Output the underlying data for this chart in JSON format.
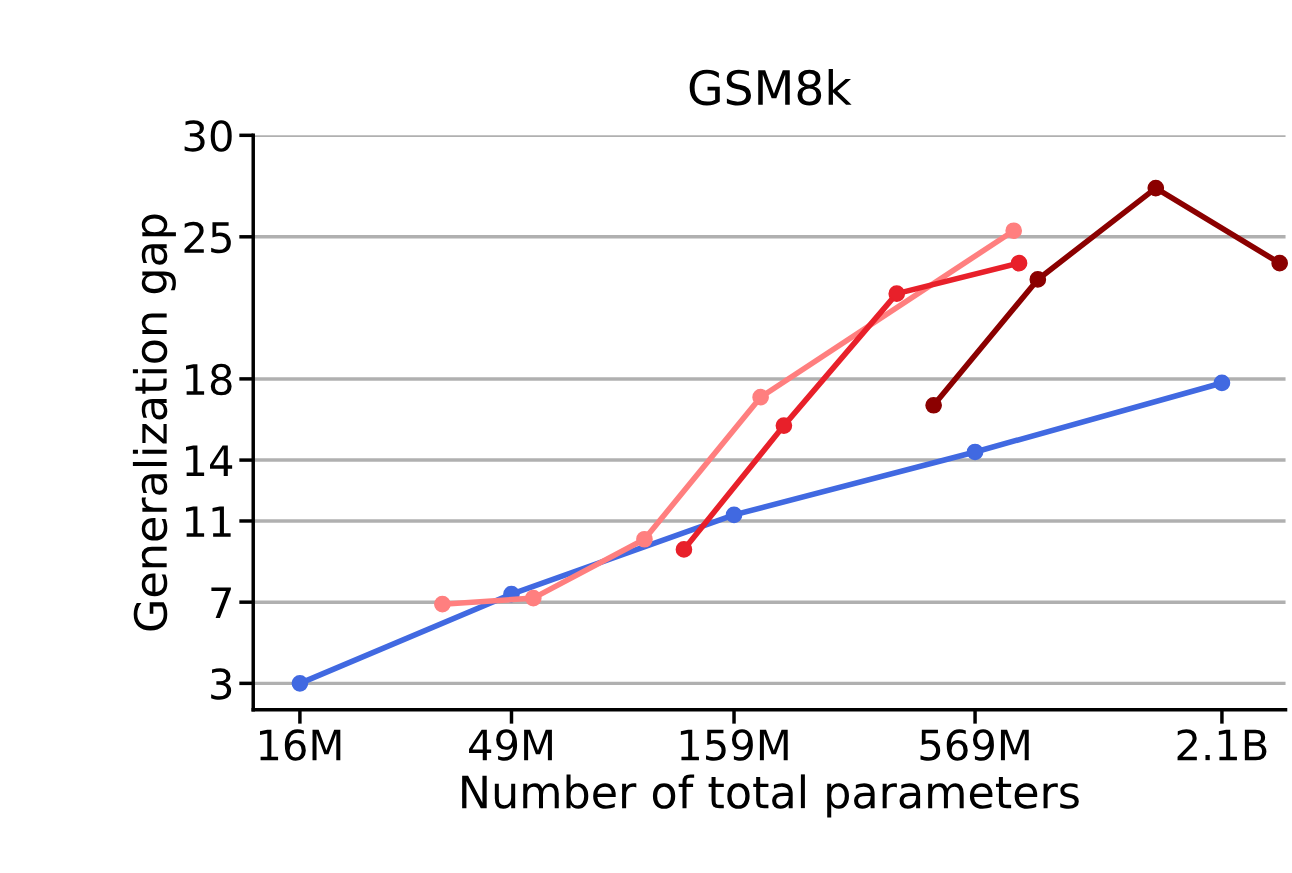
{
  "chart_data": {
    "type": "line",
    "title": "GSM8k",
    "xlabel": "Number of total parameters",
    "ylabel": "Generalization gap",
    "log": "x",
    "grid": "y",
    "marker": "circle",
    "line_style": "solid",
    "xlim": [
      12500000,
      2940000000
    ],
    "xticks": [
      {
        "value": 16000000,
        "label": "16M"
      },
      {
        "value": 49000000,
        "label": "49M"
      },
      {
        "value": 159000000,
        "label": "159M"
      },
      {
        "value": 569000000,
        "label": "569M"
      },
      {
        "value": 2100000000,
        "label": "2.1B"
      }
    ],
    "ylim": [
      1.7,
      30
    ],
    "yticks": [
      3,
      7,
      11,
      14,
      18,
      25,
      30
    ],
    "series": [
      {
        "color": "#4169e1",
        "x": [
          16000000,
          49000000,
          159000000,
          569000000,
          2100000000
        ],
        "values": [
          3,
          7.4,
          11.3,
          14.4,
          17.8
        ]
      },
      {
        "color": "#ff7f7f",
        "x": [
          34000000,
          55000000,
          99000000,
          183000000,
          698000000
        ],
        "values": [
          6.9,
          7.2,
          10.1,
          17.1,
          25.3
        ]
      },
      {
        "color": "#e8202a",
        "x": [
          122000000,
          207000000,
          376000000,
          718000000
        ],
        "values": [
          9.6,
          15.7,
          22.2,
          23.7
        ]
      },
      {
        "color": "#8b0000",
        "x": [
          457000000,
          793000000,
          1480000000,
          2850000000
        ],
        "values": [
          16.7,
          22.9,
          27.4,
          23.7
        ]
      }
    ]
  }
}
